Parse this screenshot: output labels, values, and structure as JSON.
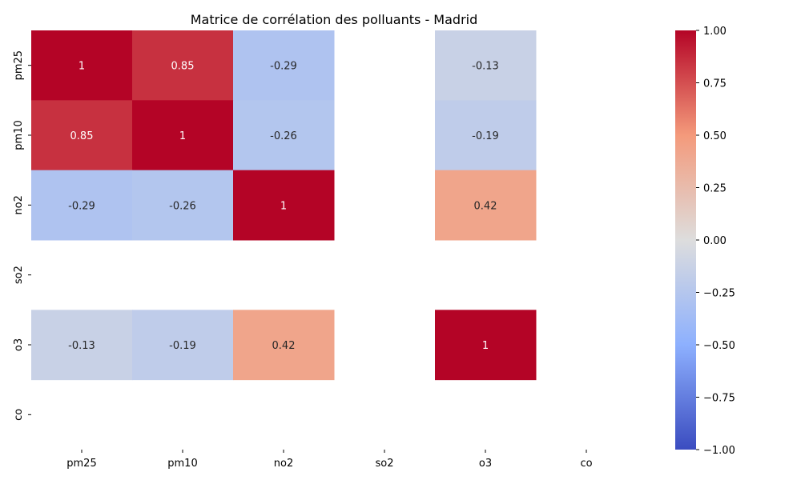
{
  "chart_data": {
    "type": "heatmap",
    "title": "Matrice de corrélation des polluants - Madrid",
    "x_categories": [
      "pm25",
      "pm10",
      "no2",
      "so2",
      "o3",
      "co"
    ],
    "y_categories": [
      "pm25",
      "pm10",
      "no2",
      "so2",
      "o3",
      "co"
    ],
    "values": [
      [
        1,
        0.85,
        -0.29,
        null,
        -0.13,
        null
      ],
      [
        0.85,
        1,
        -0.26,
        null,
        -0.19,
        null
      ],
      [
        -0.29,
        -0.26,
        1,
        null,
        0.42,
        null
      ],
      [
        null,
        null,
        null,
        null,
        null,
        null
      ],
      [
        -0.13,
        -0.19,
        0.42,
        null,
        1,
        null
      ],
      [
        null,
        null,
        null,
        null,
        null,
        null
      ]
    ],
    "labels": [
      [
        "1",
        "0.85",
        "-0.29",
        "",
        "-0.13",
        ""
      ],
      [
        "0.85",
        "1",
        "-0.26",
        "",
        "-0.19",
        ""
      ],
      [
        "-0.29",
        "-0.26",
        "1",
        "",
        "0.42",
        ""
      ],
      [
        "",
        "",
        "",
        "",
        "",
        ""
      ],
      [
        "-0.13",
        "-0.19",
        "0.42",
        "",
        "1",
        ""
      ],
      [
        "",
        "",
        "",
        "",
        "",
        ""
      ]
    ],
    "colormap": "coolwarm",
    "vmin": -1,
    "vmax": 1,
    "colorbar_ticks": [
      1.0,
      0.75,
      0.5,
      0.25,
      0.0,
      -0.25,
      -0.5,
      -0.75,
      -1.0
    ],
    "colorbar_tick_labels": [
      "1.00",
      "0.75",
      "0.50",
      "0.25",
      "0.00",
      "−0.25",
      "−0.50",
      "−0.75",
      "−1.00"
    ]
  }
}
